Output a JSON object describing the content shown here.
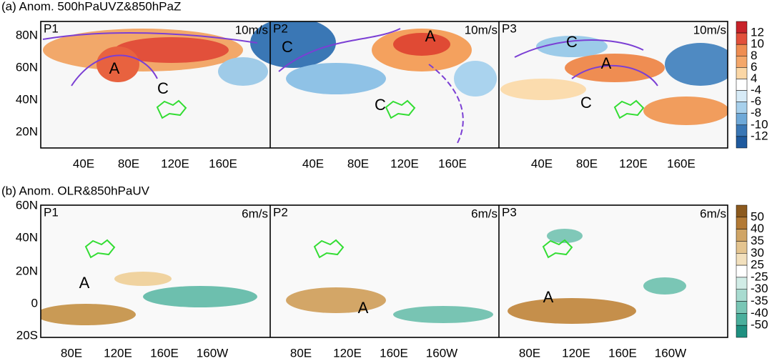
{
  "panels": [
    {
      "title": "(a) Anom. 500hPaUVZ&850hPaZ",
      "lat_labels": [
        "80N",
        "60N",
        "40N",
        "20N"
      ],
      "lon_labels": [
        "40E",
        "80E",
        "120E",
        "160E"
      ],
      "subpanels": [
        {
          "label": "P1",
          "ref_vector": "10m/s",
          "markers": [
            "A",
            "C"
          ]
        },
        {
          "label": "P2",
          "ref_vector": "10m/s",
          "markers": [
            "C",
            "A",
            "C"
          ]
        },
        {
          "label": "P3",
          "ref_vector": "10m/s",
          "markers": [
            "C",
            "A",
            "C"
          ]
        }
      ],
      "colorbar": [
        "12",
        "10",
        "8",
        "6",
        "4",
        "-4",
        "-6",
        "-8",
        "-10",
        "-12"
      ]
    },
    {
      "title": "(b) Anom. OLR&850hPaUV",
      "lat_labels": [
        "60N",
        "40N",
        "20N",
        "0",
        "20S"
      ],
      "lon_labels": [
        "80E",
        "120E",
        "160E",
        "160W"
      ],
      "subpanels": [
        {
          "label": "P1",
          "ref_vector": "6m/s",
          "markers": [
            "A"
          ]
        },
        {
          "label": "P2",
          "ref_vector": "6m/s",
          "markers": [
            "A"
          ]
        },
        {
          "label": "P3",
          "ref_vector": "6m/s",
          "markers": [
            "A"
          ]
        }
      ],
      "colorbar": [
        "50",
        "40",
        "35",
        "30",
        "25",
        "-25",
        "-30",
        "-35",
        "-40",
        "-50"
      ]
    }
  ]
}
